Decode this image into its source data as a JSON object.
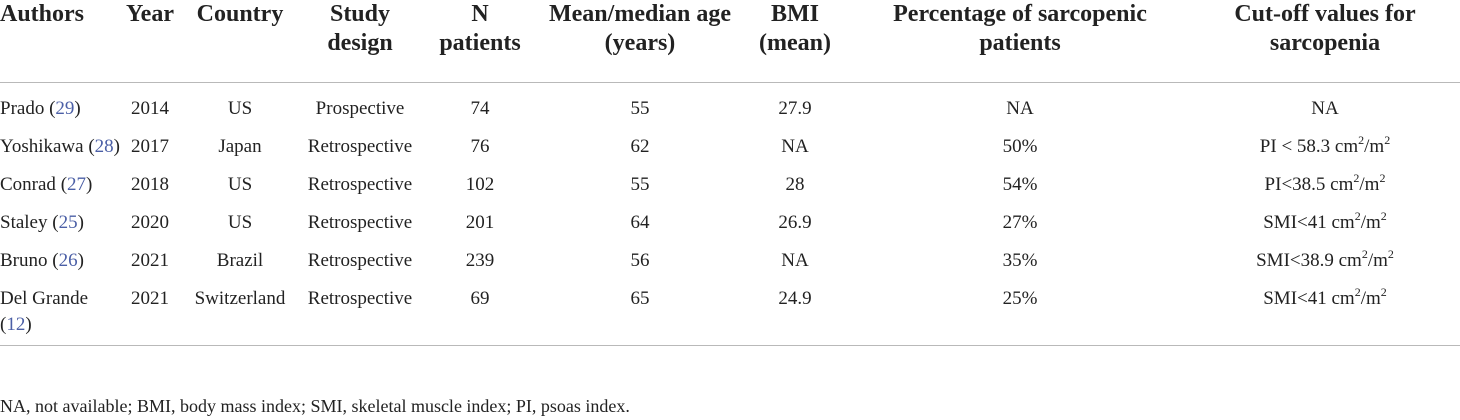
{
  "table": {
    "headers": [
      [
        "Authors"
      ],
      [
        "Year"
      ],
      [
        "Country"
      ],
      [
        "Study",
        "design"
      ],
      [
        "N",
        "patients"
      ],
      [
        "Mean/median age",
        "(years)"
      ],
      [
        "BMI",
        "(mean)"
      ],
      [
        "Percentage of sarcopenic",
        "patients"
      ],
      [
        "Cut-off values for",
        "sarcopenia"
      ]
    ],
    "rows": [
      {
        "author_name": "Prado",
        "ref": "29",
        "year": "2014",
        "country": "US",
        "design": "Prospective",
        "n": "74",
        "age": "55",
        "bmi": "27.9",
        "pct": "NA",
        "cutoff": {
          "prefix": "NA",
          "unit1": "",
          "sup1": "",
          "unit2": "",
          "sup2": ""
        }
      },
      {
        "author_name": "Yoshikawa",
        "ref": "28",
        "year": "2017",
        "country": "Japan",
        "design": "Retrospective",
        "n": "76",
        "age": "62",
        "bmi": "NA",
        "pct": "50%",
        "cutoff": {
          "prefix": "PI < 58.3 cm",
          "unit1": "",
          "sup1": "2",
          "unit2": "/m",
          "sup2": "2"
        }
      },
      {
        "author_name": "Conrad",
        "ref": "27",
        "year": "2018",
        "country": "US",
        "design": "Retrospective",
        "n": "102",
        "age": "55",
        "bmi": "28",
        "pct": "54%",
        "cutoff": {
          "prefix": "PI<38.5 cm",
          "unit1": "",
          "sup1": "2",
          "unit2": "/m",
          "sup2": "2"
        }
      },
      {
        "author_name": "Staley",
        "ref": "25",
        "year": "2020",
        "country": "US",
        "design": "Retrospective",
        "n": "201",
        "age": "64",
        "bmi": "26.9",
        "pct": "27%",
        "cutoff": {
          "prefix": "SMI<41 cm",
          "unit1": "",
          "sup1": "2",
          "unit2": "/m",
          "sup2": "2"
        }
      },
      {
        "author_name": "Bruno",
        "ref": "26",
        "year": "2021",
        "country": "Brazil",
        "design": "Retrospective",
        "n": "239",
        "age": "56",
        "bmi": "NA",
        "pct": "35%",
        "cutoff": {
          "prefix": "SMI<38.9 cm",
          "unit1": "",
          "sup1": "2",
          "unit2": "/m",
          "sup2": "2"
        }
      },
      {
        "author_name": "Del Grande",
        "ref": "12",
        "year": "2021",
        "country": "Switzerland",
        "design": "Retrospective",
        "n": "69",
        "age": "65",
        "bmi": "24.9",
        "pct": "25%",
        "cutoff": {
          "prefix": "SMI<41 cm",
          "unit1": "",
          "sup1": "2",
          "unit2": "/m",
          "sup2": "2"
        }
      }
    ]
  },
  "footnote": "NA, not available; BMI, body mass index; SMI, skeletal muscle index; PI, psoas index.",
  "colors": {
    "text": "#222222",
    "reference_link": "#4b5fa6",
    "rule": "#b9b9b9"
  }
}
